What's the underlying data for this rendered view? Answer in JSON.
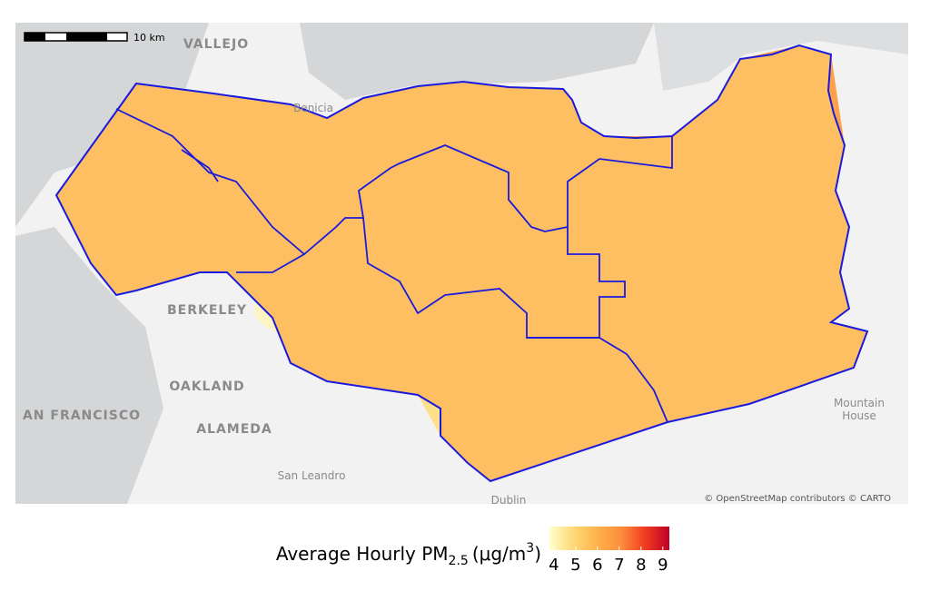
{
  "map": {
    "scale_bar": "10 km",
    "places": [
      {
        "name": "VALLEJO"
      },
      {
        "name": "Benicia"
      },
      {
        "name": "BERKELEY"
      },
      {
        "name": "OAKLAND"
      },
      {
        "name": "AN FRANCISCO"
      },
      {
        "name": "ALAMEDA"
      },
      {
        "name": "San Leandro"
      },
      {
        "name": "Dublin"
      },
      {
        "name": "Mountain"
      },
      {
        "name": "House"
      }
    ],
    "attribution": "© OpenStreetMap contributors © CARTO"
  },
  "colorbar": {
    "label": {
      "text": "Average Hourly PM",
      "subscript": "2.5",
      "unit": "(μg/m",
      "superscript": "3",
      "close": ")"
    },
    "lim": [
      3.8,
      9.3
    ],
    "ticks": [
      4,
      5,
      6,
      7,
      8,
      9
    ],
    "colors": [
      "#ffffcc",
      "#fed976",
      "#feb24c",
      "#fd8d3c",
      "#f03b20",
      "#bd0026"
    ]
  }
}
